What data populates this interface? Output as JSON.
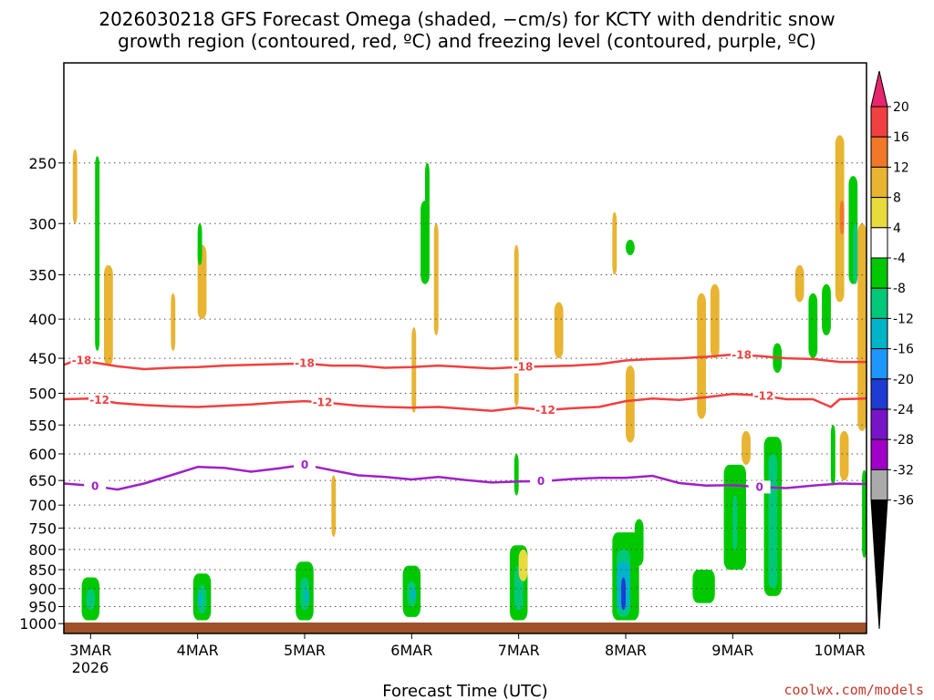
{
  "title_line1": "2026030218 GFS Forecast Omega (shaded, −cm/s) for KCTY with dendritic snow",
  "title_line2": "growth region (contoured, red, ºC) and freezing level (contoured, purple, ºC)",
  "credit": "coolwx.com/models",
  "chart_data": {
    "type": "heatmap",
    "xlabel": "Forecast Time (UTC)",
    "year_label": "2026",
    "x_range_hours": [
      -6,
      174
    ],
    "y_pressure_range_hPa": [
      1030,
      185
    ],
    "x_ticks": [
      {
        "label": "3MAR",
        "hour": 0
      },
      {
        "label": "4MAR",
        "hour": 24
      },
      {
        "label": "5MAR",
        "hour": 48
      },
      {
        "label": "6MAR",
        "hour": 72
      },
      {
        "label": "7MAR",
        "hour": 96
      },
      {
        "label": "8MAR",
        "hour": 120
      },
      {
        "label": "9MAR",
        "hour": 144
      },
      {
        "label": "10MAR",
        "hour": 168
      }
    ],
    "y_ticks": [
      {
        "label": "250",
        "p": 250
      },
      {
        "label": "300",
        "p": 300
      },
      {
        "label": "350",
        "p": 350
      },
      {
        "label": "400",
        "p": 400
      },
      {
        "label": "450",
        "p": 450
      },
      {
        "label": "500",
        "p": 500
      },
      {
        "label": "550",
        "p": 550
      },
      {
        "label": "600",
        "p": 600
      },
      {
        "label": "650",
        "p": 650
      },
      {
        "label": "700",
        "p": 700
      },
      {
        "label": "750",
        "p": 750
      },
      {
        "label": "800",
        "p": 800
      },
      {
        "label": "850",
        "p": 850
      },
      {
        "label": "900",
        "p": 900
      },
      {
        "label": "950",
        "p": 950
      },
      {
        "label": "1000",
        "p": 1000
      }
    ],
    "colorbar": {
      "labels": [
        "20",
        "16",
        "12",
        "8",
        "4",
        "-4",
        "-8",
        "-12",
        "-16",
        "-20",
        "-24",
        "-28",
        "-32",
        "-36"
      ],
      "colors": [
        "#e8266e",
        "#f04040",
        "#f07828",
        "#e8b432",
        "#e8dc3c",
        "#ffffff",
        "#00c800",
        "#00c878",
        "#00b4c8",
        "#1e96ff",
        "#1e3cd2",
        "#7814c8",
        "#a000c8",
        "#aaaaaa",
        "#000000"
      ]
    },
    "contours": [
      {
        "name": "-18C isotherm",
        "label": "-18",
        "color": "#f04040",
        "label_hours": [
          -2,
          48,
          97,
          146
        ],
        "points": [
          [
            -6,
            459
          ],
          [
            -3,
            452
          ],
          [
            0,
            455
          ],
          [
            6,
            461
          ],
          [
            12,
            465
          ],
          [
            18,
            463
          ],
          [
            24,
            462
          ],
          [
            30,
            460
          ],
          [
            36,
            459
          ],
          [
            42,
            458
          ],
          [
            48,
            457
          ],
          [
            54,
            460
          ],
          [
            60,
            460
          ],
          [
            66,
            463
          ],
          [
            72,
            462
          ],
          [
            78,
            460
          ],
          [
            84,
            462
          ],
          [
            90,
            464
          ],
          [
            96,
            462
          ],
          [
            102,
            461
          ],
          [
            108,
            460
          ],
          [
            114,
            458
          ],
          [
            120,
            453
          ],
          [
            126,
            451
          ],
          [
            132,
            450
          ],
          [
            138,
            448
          ],
          [
            144,
            445
          ],
          [
            150,
            447
          ],
          [
            156,
            450
          ],
          [
            162,
            451
          ],
          [
            168,
            455
          ],
          [
            174,
            455
          ]
        ]
      },
      {
        "name": "-12C isotherm",
        "label": "-12",
        "color": "#f04040",
        "label_hours": [
          2,
          52,
          102,
          151
        ],
        "points": [
          [
            -6,
            509
          ],
          [
            0,
            508
          ],
          [
            6,
            515
          ],
          [
            12,
            518
          ],
          [
            18,
            520
          ],
          [
            24,
            521
          ],
          [
            30,
            519
          ],
          [
            36,
            517
          ],
          [
            42,
            514
          ],
          [
            48,
            512
          ],
          [
            54,
            515
          ],
          [
            60,
            519
          ],
          [
            66,
            521
          ],
          [
            72,
            522
          ],
          [
            78,
            521
          ],
          [
            84,
            524
          ],
          [
            90,
            527
          ],
          [
            96,
            522
          ],
          [
            102,
            526
          ],
          [
            108,
            523
          ],
          [
            114,
            521
          ],
          [
            120,
            512
          ],
          [
            126,
            508
          ],
          [
            132,
            510
          ],
          [
            138,
            506
          ],
          [
            144,
            501
          ],
          [
            150,
            503
          ],
          [
            156,
            509
          ],
          [
            162,
            509
          ],
          [
            166,
            521
          ],
          [
            168,
            509
          ],
          [
            174,
            508
          ]
        ]
      },
      {
        "name": "0C freezing level",
        "label": "0",
        "color": "#a020c8",
        "label_hours": [
          1,
          48,
          101,
          150
        ],
        "points": [
          [
            -6,
            656
          ],
          [
            0,
            660
          ],
          [
            6,
            668
          ],
          [
            12,
            656
          ],
          [
            18,
            640
          ],
          [
            24,
            624
          ],
          [
            30,
            626
          ],
          [
            36,
            633
          ],
          [
            42,
            627
          ],
          [
            48,
            620
          ],
          [
            54,
            630
          ],
          [
            60,
            640
          ],
          [
            66,
            643
          ],
          [
            72,
            648
          ],
          [
            78,
            643
          ],
          [
            84,
            649
          ],
          [
            90,
            654
          ],
          [
            96,
            652
          ],
          [
            102,
            651
          ],
          [
            108,
            647
          ],
          [
            114,
            645
          ],
          [
            120,
            645
          ],
          [
            126,
            641
          ],
          [
            132,
            655
          ],
          [
            138,
            660
          ],
          [
            144,
            659
          ],
          [
            150,
            663
          ],
          [
            156,
            665
          ],
          [
            162,
            660
          ],
          [
            168,
            656
          ],
          [
            174,
            657
          ]
        ]
      }
    ],
    "regions": [
      {
        "t0": -4,
        "t1": -3,
        "p0": 240,
        "p1": 300,
        "c": 3
      },
      {
        "t0": 1,
        "t1": 3,
        "p0": 245,
        "p1": 440,
        "c": 5
      },
      {
        "t0": 3,
        "t1": 5,
        "p0": 340,
        "p1": 460,
        "c": 3
      },
      {
        "t0": 24,
        "t1": 26,
        "p0": 320,
        "p1": 400,
        "c": 3
      },
      {
        "t0": 18,
        "t1": 19,
        "p0": 370,
        "p1": 440,
        "c": 3
      },
      {
        "t0": 54,
        "t1": 55,
        "p0": 640,
        "p1": 770,
        "c": 3
      },
      {
        "t0": 72,
        "t1": 73,
        "p0": 410,
        "p1": 530,
        "c": 3
      },
      {
        "t0": 77,
        "t1": 78,
        "p0": 300,
        "p1": 420,
        "c": 3
      },
      {
        "t0": 95,
        "t1": 96,
        "p0": 320,
        "p1": 520,
        "c": 3
      },
      {
        "t0": 104,
        "t1": 106,
        "p0": 380,
        "p1": 450,
        "c": 3
      },
      {
        "t0": 117,
        "t1": 118,
        "p0": 290,
        "p1": 350,
        "c": 3
      },
      {
        "t0": 120,
        "t1": 122,
        "p0": 460,
        "p1": 580,
        "c": 3
      },
      {
        "t0": 136,
        "t1": 138,
        "p0": 370,
        "p1": 540,
        "c": 3
      },
      {
        "t0": 139,
        "t1": 141,
        "p0": 360,
        "p1": 450,
        "c": 3
      },
      {
        "t0": 146,
        "t1": 148,
        "p0": 560,
        "p1": 620,
        "c": 3
      },
      {
        "t0": 158,
        "t1": 160,
        "p0": 340,
        "p1": 380,
        "c": 3
      },
      {
        "t0": 167,
        "t1": 169,
        "p0": 230,
        "p1": 380,
        "c": 3
      },
      {
        "t0": 168,
        "t1": 169,
        "p0": 280,
        "p1": 310,
        "c": 2
      },
      {
        "t0": 168,
        "t1": 170,
        "p0": 560,
        "p1": 650,
        "c": 3
      },
      {
        "t0": 172,
        "t1": 174,
        "p0": 300,
        "p1": 560,
        "c": 3
      },
      {
        "t0": 1,
        "t1": 2,
        "p0": 245,
        "p1": 440,
        "c": 6
      },
      {
        "t0": 24,
        "t1": 25,
        "p0": 300,
        "p1": 340,
        "c": 6
      },
      {
        "t0": 74,
        "t1": 76,
        "p0": 280,
        "p1": 360,
        "c": 6
      },
      {
        "t0": 75,
        "t1": 76,
        "p0": 250,
        "p1": 300,
        "c": 6
      },
      {
        "t0": 120,
        "t1": 122,
        "p0": 315,
        "p1": 330,
        "c": 6
      },
      {
        "t0": 161,
        "t1": 163,
        "p0": 370,
        "p1": 450,
        "c": 6
      },
      {
        "t0": 164,
        "t1": 166,
        "p0": 360,
        "p1": 420,
        "c": 6
      },
      {
        "t0": 170,
        "t1": 172,
        "p0": 260,
        "p1": 360,
        "c": 6
      },
      {
        "t0": 171,
        "t1": 172,
        "p0": 300,
        "p1": 360,
        "c": 7
      },
      {
        "t0": 153,
        "t1": 155,
        "p0": 430,
        "p1": 470,
        "c": 6
      },
      {
        "t0": 166,
        "t1": 167,
        "p0": 550,
        "p1": 660,
        "c": 6
      },
      {
        "t0": 173,
        "t1": 174,
        "p0": 630,
        "p1": 820,
        "c": 6
      },
      {
        "t0": -2,
        "t1": 2,
        "p0": 870,
        "p1": 990,
        "c": 6
      },
      {
        "t0": -1,
        "t1": 1,
        "p0": 900,
        "p1": 960,
        "c": 7
      },
      {
        "t0": 23,
        "t1": 27,
        "p0": 860,
        "p1": 990,
        "c": 6
      },
      {
        "t0": 24,
        "t1": 26,
        "p0": 890,
        "p1": 970,
        "c": 7
      },
      {
        "t0": 24,
        "t1": 25,
        "p0": 910,
        "p1": 950,
        "c": 8
      },
      {
        "t0": 46,
        "t1": 50,
        "p0": 830,
        "p1": 990,
        "c": 6
      },
      {
        "t0": 47,
        "t1": 49,
        "p0": 870,
        "p1": 960,
        "c": 7
      },
      {
        "t0": 48,
        "t1": 49,
        "p0": 900,
        "p1": 940,
        "c": 8
      },
      {
        "t0": 70,
        "t1": 74,
        "p0": 840,
        "p1": 980,
        "c": 6
      },
      {
        "t0": 71,
        "t1": 73,
        "p0": 880,
        "p1": 950,
        "c": 7
      },
      {
        "t0": 72,
        "t1": 73,
        "p0": 900,
        "p1": 930,
        "c": 8
      },
      {
        "t0": 94,
        "t1": 98,
        "p0": 790,
        "p1": 990,
        "c": 6
      },
      {
        "t0": 95,
        "t1": 97,
        "p0": 840,
        "p1": 960,
        "c": 7
      },
      {
        "t0": 96,
        "t1": 98,
        "p0": 800,
        "p1": 880,
        "c": 4
      },
      {
        "t0": 95,
        "t1": 96,
        "p0": 600,
        "p1": 680,
        "c": 6
      },
      {
        "t0": 117,
        "t1": 123,
        "p0": 760,
        "p1": 990,
        "c": 6
      },
      {
        "t0": 118,
        "t1": 121,
        "p0": 800,
        "p1": 980,
        "c": 7
      },
      {
        "t0": 118,
        "t1": 121,
        "p0": 830,
        "p1": 960,
        "c": 8
      },
      {
        "t0": 119,
        "t1": 120,
        "p0": 870,
        "p1": 960,
        "c": 10
      },
      {
        "t0": 122,
        "t1": 124,
        "p0": 730,
        "p1": 840,
        "c": 6
      },
      {
        "t0": 135,
        "t1": 140,
        "p0": 850,
        "p1": 940,
        "c": 6
      },
      {
        "t0": 142,
        "t1": 147,
        "p0": 620,
        "p1": 850,
        "c": 6
      },
      {
        "t0": 144,
        "t1": 145,
        "p0": 680,
        "p1": 800,
        "c": 7
      },
      {
        "t0": 151,
        "t1": 155,
        "p0": 570,
        "p1": 920,
        "c": 6
      },
      {
        "t0": 152,
        "t1": 154,
        "p0": 600,
        "p1": 900,
        "c": 7
      }
    ]
  }
}
